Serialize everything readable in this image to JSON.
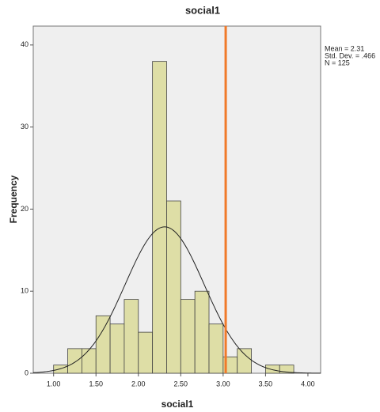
{
  "chart_data": {
    "type": "histogram",
    "title": "social1",
    "x_label": "social1",
    "y_label": "Frequency",
    "bins": [
      1.0,
      1.1667,
      1.3333,
      1.5,
      1.6667,
      1.8333,
      2.0,
      2.1667,
      2.3333,
      2.5,
      2.6667,
      2.8333,
      3.0,
      3.1667,
      3.3333,
      3.5,
      3.6667,
      3.8333
    ],
    "values": [
      1,
      3,
      3,
      7,
      6,
      9,
      5,
      38,
      21,
      9,
      10,
      6,
      2,
      3,
      0,
      1,
      1
    ],
    "color": "#dedea6",
    "xlim": [
      0.76,
      4.15
    ],
    "ylim": [
      0,
      42.3
    ],
    "xticks": [
      {
        "value": 1,
        "label": "1.00"
      },
      {
        "value": 1.5,
        "label": "1.50"
      },
      {
        "value": 2,
        "label": "2.00"
      },
      {
        "value": 2.5,
        "label": "2.50"
      },
      {
        "value": 3,
        "label": "3.00"
      },
      {
        "value": 3.5,
        "label": "3.50"
      },
      {
        "value": 4,
        "label": "4.00"
      }
    ],
    "yticks": [
      0,
      10,
      20,
      30,
      40
    ],
    "stats": [
      {
        "value": 2.31,
        "label": "Mean = 2.31"
      },
      {
        "value": 0.466,
        "label": "Std. Dev. = .466"
      },
      {
        "value": 125,
        "label": "N = 125"
      }
    ],
    "reference_line": {
      "x": 3.03,
      "color": "#f07a2a"
    }
  }
}
